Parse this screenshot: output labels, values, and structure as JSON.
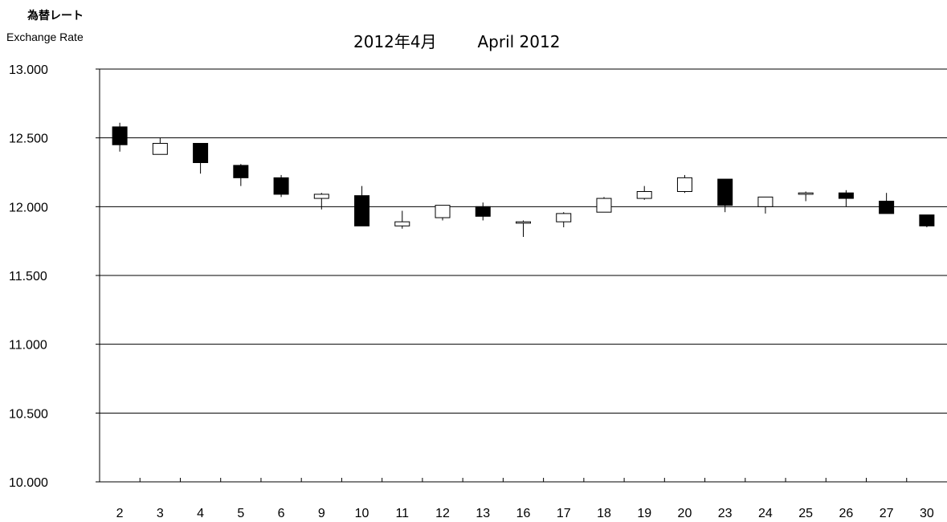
{
  "ylabel_jp": "為替レート",
  "ylabel_en": "Exchange Rate",
  "title_jp": "2012年4月",
  "title_en": "April 2012",
  "chart_data": {
    "type": "candlestick",
    "ylim": [
      10.0,
      13.0
    ],
    "yticks": [
      "13.000",
      "12.500",
      "12.000",
      "11.500",
      "11.000",
      "10.500",
      "10.000"
    ],
    "grid": true,
    "colors": {
      "up": "#ffffff",
      "down": "#000000",
      "line": "#000000"
    },
    "categories": [
      "2",
      "3",
      "4",
      "5",
      "6",
      "9",
      "10",
      "11",
      "12",
      "13",
      "16",
      "17",
      "18",
      "19",
      "20",
      "23",
      "24",
      "25",
      "26",
      "27",
      "30"
    ],
    "candles": [
      {
        "o": 12.58,
        "h": 12.61,
        "l": 12.4,
        "c": 12.45
      },
      {
        "o": 12.38,
        "h": 12.5,
        "l": 12.38,
        "c": 12.46
      },
      {
        "o": 12.46,
        "h": 12.46,
        "l": 12.24,
        "c": 12.32
      },
      {
        "o": 12.3,
        "h": 12.31,
        "l": 12.15,
        "c": 12.21
      },
      {
        "o": 12.21,
        "h": 12.23,
        "l": 12.07,
        "c": 12.09
      },
      {
        "o": 12.06,
        "h": 12.1,
        "l": 11.98,
        "c": 12.09
      },
      {
        "o": 12.08,
        "h": 12.15,
        "l": 11.86,
        "c": 11.86
      },
      {
        "o": 11.86,
        "h": 11.97,
        "l": 11.84,
        "c": 11.89
      },
      {
        "o": 11.92,
        "h": 12.01,
        "l": 11.9,
        "c": 12.01
      },
      {
        "o": 12.0,
        "h": 12.03,
        "l": 11.9,
        "c": 11.93
      },
      {
        "o": 11.88,
        "h": 11.9,
        "l": 11.78,
        "c": 11.89
      },
      {
        "o": 11.89,
        "h": 11.96,
        "l": 11.85,
        "c": 11.95
      },
      {
        "o": 11.96,
        "h": 12.07,
        "l": 11.96,
        "c": 12.06
      },
      {
        "o": 12.06,
        "h": 12.15,
        "l": 12.05,
        "c": 12.11
      },
      {
        "o": 12.11,
        "h": 12.23,
        "l": 12.1,
        "c": 12.21
      },
      {
        "o": 12.2,
        "h": 12.2,
        "l": 11.96,
        "c": 12.01
      },
      {
        "o": 12.0,
        "h": 12.07,
        "l": 11.95,
        "c": 12.07
      },
      {
        "o": 12.09,
        "h": 12.11,
        "l": 12.04,
        "c": 12.1
      },
      {
        "o": 12.1,
        "h": 12.12,
        "l": 12.0,
        "c": 12.06
      },
      {
        "o": 12.04,
        "h": 12.1,
        "l": 11.95,
        "c": 11.95
      },
      {
        "o": 11.94,
        "h": 11.94,
        "l": 11.85,
        "c": 11.86
      }
    ]
  }
}
